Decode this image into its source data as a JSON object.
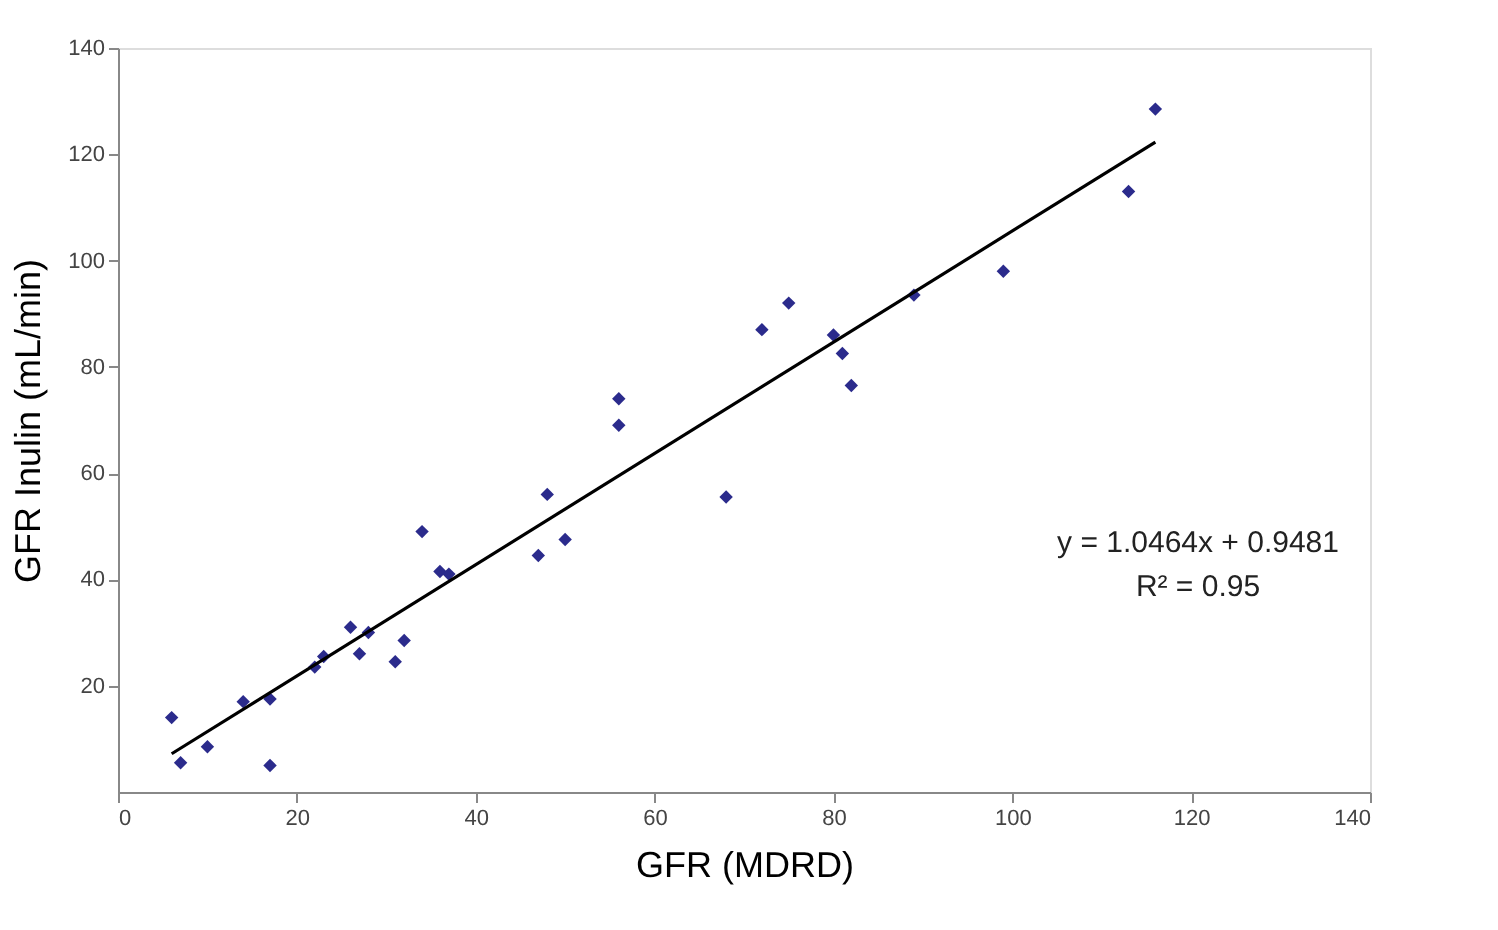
{
  "chart_data": {
    "type": "scatter",
    "xlabel": "GFR (MDRD)",
    "ylabel": "GFR Inulin (mL/min)",
    "xlim": [
      0,
      140
    ],
    "ylim": [
      0,
      140
    ],
    "xticks": [
      0,
      20,
      40,
      60,
      80,
      100,
      120,
      140
    ],
    "yticks": [
      20,
      40,
      60,
      80,
      100,
      120,
      140
    ],
    "grid": false,
    "legend": false,
    "marker": "diamond",
    "series": [
      {
        "color": "#2b2b8c",
        "x": [
          6,
          7,
          10,
          14,
          17,
          17,
          22,
          23,
          26,
          27,
          28,
          31,
          32,
          34,
          36,
          37,
          47,
          48,
          50,
          56,
          56,
          68,
          72,
          75,
          80,
          81,
          82,
          89,
          99,
          113,
          116
        ],
        "values": [
          14,
          5.5,
          8.5,
          17,
          17.5,
          5,
          23.5,
          25.5,
          31,
          26,
          30,
          24.5,
          28.5,
          49,
          41.5,
          41,
          44.5,
          56,
          47.5,
          74,
          69,
          55.5,
          87,
          92,
          86,
          82.5,
          76.5,
          93.5,
          98,
          113,
          128.5
        ]
      },
      {
        "type": "line",
        "color": "#000000",
        "marker": "none",
        "line_style": "solid",
        "x": [
          6,
          116
        ],
        "values": [
          7.2,
          122.3
        ]
      }
    ],
    "annotations": [
      "y = 1.0464x + 0.9481",
      "R² = 0.95"
    ]
  }
}
